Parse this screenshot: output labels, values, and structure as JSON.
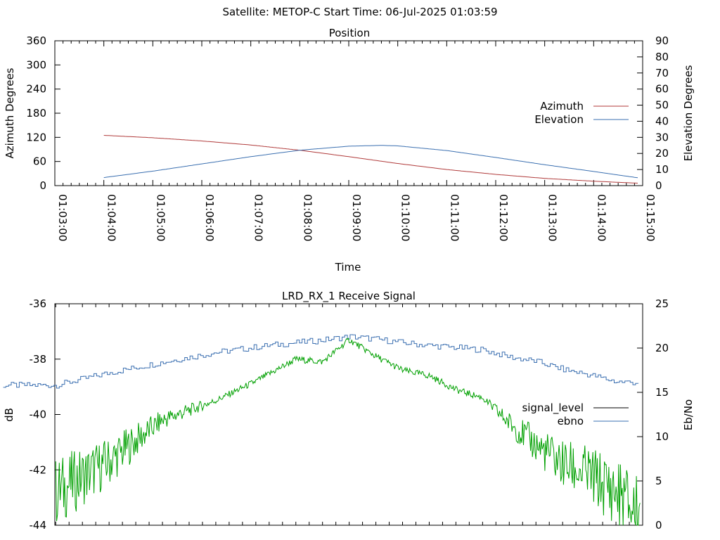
{
  "header": {
    "title": "Satellite: METOP-C    Start Time: 06-Jul-2025 01:03:59"
  },
  "colors": {
    "azimuth": "#b03a3a",
    "elevation": "#3a6fb0",
    "signal_level_legend": "#000000",
    "signal_level_line": "#00a000",
    "ebno": "#3a6fb0"
  },
  "chart_data": [
    {
      "type": "line",
      "title": "Position",
      "xlabel": "Time",
      "ylabel": "Azimuth Degrees",
      "y2label": "Elevation Degrees",
      "xlim": [
        "01:03:00",
        "01:15:00"
      ],
      "ylim": [
        0,
        360
      ],
      "y2lim": [
        0,
        90
      ],
      "x_ticks": [
        "01:03:00",
        "01:04:00",
        "01:05:00",
        "01:06:00",
        "01:07:00",
        "01:08:00",
        "01:09:00",
        "01:10:00",
        "01:11:00",
        "01:12:00",
        "01:13:00",
        "01:14:00",
        "01:15:00"
      ],
      "y_ticks": [
        "0",
        "60",
        "120",
        "180",
        "240",
        "300",
        "360"
      ],
      "y2_ticks": [
        "0",
        "10",
        "20",
        "30",
        "40",
        "50",
        "60",
        "70",
        "80",
        "90"
      ],
      "legend_position": "right",
      "grid": false,
      "series": [
        {
          "name": "Azimuth",
          "axis": "y",
          "x": [
            "01:04:00",
            "01:05:00",
            "01:06:00",
            "01:07:00",
            "01:08:00",
            "01:09:00",
            "01:10:00",
            "01:11:00",
            "01:12:00",
            "01:13:00",
            "01:14:00",
            "01:14:55"
          ],
          "values": [
            125,
            119,
            111,
            101,
            88,
            72,
            55,
            40,
            28,
            18,
            11,
            6
          ]
        },
        {
          "name": "Elevation",
          "axis": "y2",
          "x": [
            "01:04:00",
            "01:05:00",
            "01:06:00",
            "01:07:00",
            "01:08:00",
            "01:09:00",
            "01:09:40",
            "01:10:00",
            "01:11:00",
            "01:12:00",
            "01:13:00",
            "01:14:00",
            "01:14:55"
          ],
          "values": [
            5,
            9,
            13.5,
            18,
            22,
            24.5,
            25,
            24.7,
            21.8,
            17.5,
            13,
            8.8,
            4.8
          ]
        }
      ]
    },
    {
      "type": "line",
      "title": "LRD_RX_1 Receive Signal",
      "xlabel": "",
      "ylabel": "dB",
      "y2label": "Eb/No",
      "xlim": [
        "01:03:59",
        "01:15:00"
      ],
      "ylim": [
        -44,
        -36
      ],
      "y2lim": [
        0,
        25
      ],
      "y_ticks": [
        "-36",
        "-38",
        "-40",
        "-42",
        "-44"
      ],
      "y2_ticks": [
        "25",
        "20",
        "15",
        "10",
        "5",
        "0"
      ],
      "legend_position": "right",
      "grid": false,
      "series": [
        {
          "name": "signal_level",
          "axis": "y",
          "x": [
            "01:04:00",
            "01:05:00",
            "01:06:00",
            "01:07:00",
            "01:07:45",
            "01:08:30",
            "01:09:00",
            "01:09:15",
            "01:09:30",
            "01:10:00",
            "01:10:30",
            "01:11:00",
            "01:11:30",
            "01:12:00",
            "01:12:30",
            "01:13:00",
            "01:13:30",
            "01:14:00",
            "01:14:30",
            "01:14:57"
          ],
          "values": [
            -42.8,
            -41.7,
            -40.2,
            -39.5,
            -38.8,
            -38.0,
            -38.1,
            -37.7,
            -37.3,
            -37.9,
            -38.4,
            -38.6,
            -39.1,
            -39.4,
            -40.3,
            -41.1,
            -41.8,
            -42.2,
            -42.8,
            -43.6
          ]
        },
        {
          "name": "ebno",
          "axis": "y2",
          "x": [
            "01:04:00",
            "01:05:00",
            "01:06:00",
            "01:07:00",
            "01:08:00",
            "01:08:30",
            "01:09:00",
            "01:09:30",
            "01:10:00",
            "01:10:30",
            "01:11:00",
            "01:12:00",
            "01:12:30",
            "01:13:00",
            "01:13:30",
            "01:14:00",
            "01:14:30",
            "01:14:57"
          ],
          "values": [
            15.8,
            17.2,
            18.4,
            19.5,
            20.3,
            20.6,
            20.9,
            21.3,
            21.0,
            20.6,
            20.3,
            19.8,
            19.0,
            18.5,
            17.6,
            17.0,
            16.2,
            16.1
          ]
        }
      ]
    }
  ]
}
